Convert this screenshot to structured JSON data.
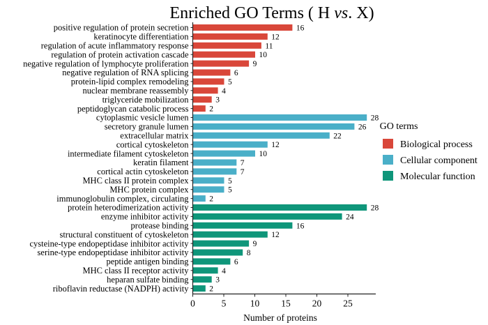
{
  "chart_data": {
    "type": "bar",
    "orientation": "horizontal",
    "title": "Enriched GO Terms ( H vs. X)",
    "title_parts": {
      "prefix": "Enriched GO Terms ( H ",
      "italic": "vs",
      "suffix": ". X)"
    },
    "xlabel": "Number of proteins",
    "ylabel": "",
    "xlim": [
      0,
      29
    ],
    "xticks": [
      0,
      5,
      10,
      15,
      20,
      25
    ],
    "grid": false,
    "legend": {
      "title": "GO terms",
      "placement": "right",
      "entries": [
        {
          "name": "Biological process",
          "color": "#d9473a"
        },
        {
          "name": "Cellular component",
          "color": "#4aafc8"
        },
        {
          "name": "Molecular function",
          "color": "#0f967a"
        }
      ]
    },
    "series": [
      {
        "name": "Biological process",
        "color": "#d9473a",
        "categories": [
          "positive regulation of protein secretion",
          "keratinocyte differentiation",
          "regulation of acute inflammatory response",
          "regulation of protein activation cascade",
          "negative regulation of lymphocyte proliferation",
          "negative regulation of RNA splicing",
          "protein-lipid complex remodeling",
          "nuclear membrane reassembly",
          "triglyceride mobilization",
          "peptidoglycan catabolic process"
        ],
        "values": [
          16,
          12,
          11,
          10,
          9,
          6,
          5,
          4,
          3,
          2
        ]
      },
      {
        "name": "Cellular component",
        "color": "#4aafc8",
        "categories": [
          "cytoplasmic vesicle lumen",
          "secretory granule lumen",
          "extracellular matrix",
          "cortical cytoskeleton",
          "intermediate filament cytoskeleton",
          "keratin filament",
          "cortical actin cytoskeleton",
          "MHC class II protein complex",
          "MHC protein complex",
          "immunoglobulin complex, circulating"
        ],
        "values": [
          28,
          26,
          22,
          12,
          10,
          7,
          7,
          5,
          5,
          2
        ]
      },
      {
        "name": "Molecular function",
        "color": "#0f967a",
        "categories": [
          "protein heterodimerization activity",
          "enzyme inhibitor activity",
          "protease binding",
          "structural constituent of cytoskeleton",
          "cysteine-type endopeptidase inhibitor activity",
          "serine-type endopeptidase inhibitor activity",
          "peptide antigen binding",
          "MHC class II receptor activity",
          "heparan sulfate binding",
          "riboflavin reductase (NADPH) activity"
        ],
        "values": [
          28,
          24,
          16,
          12,
          9,
          8,
          6,
          4,
          3,
          2
        ]
      }
    ]
  }
}
